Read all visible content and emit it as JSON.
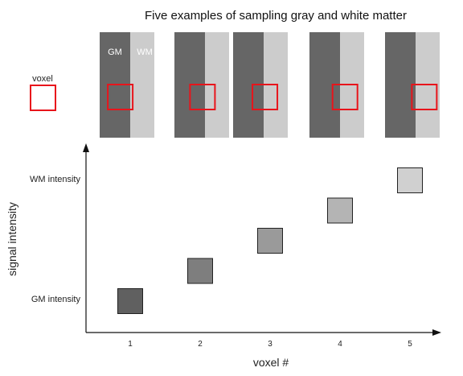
{
  "title": "Five examples of sampling gray and white matter",
  "voxel_label": "voxel",
  "panel_labels": {
    "gm": "GM",
    "wm": "WM"
  },
  "colors": {
    "gray_matter": "#666666",
    "white_matter": "#cccccc",
    "voxel_outline": "#e8141b",
    "axis": "#111111"
  },
  "voxel_offsets": [
    0.1,
    0.4,
    0.55,
    0.7,
    0.85
  ],
  "chart_data": {
    "type": "scatter",
    "xlabel": "voxel #",
    "ylabel": "signal intensity",
    "categories": [
      "1",
      "2",
      "3",
      "4",
      "5"
    ],
    "y_tick_labels": [
      {
        "label": "GM intensity",
        "value": 0
      },
      {
        "label": "WM intensity",
        "value": 1
      }
    ],
    "series": [
      {
        "values": [
          0,
          0.25,
          0.5,
          0.75,
          1
        ],
        "fills": [
          "#606060",
          "#7e7e7e",
          "#9a9a9a",
          "#b4b4b4",
          "#d0d0d0"
        ]
      }
    ],
    "ylim": [
      0,
      1
    ],
    "grid": false
  }
}
